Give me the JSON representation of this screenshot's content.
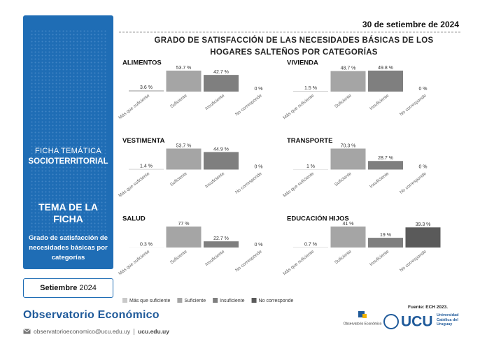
{
  "date": "30 de setiembre de 2024",
  "title": "GRADO DE SATISFACCIÓN DE LAS NECESIDADES BÁSICAS DE LOS HOGARES SALTEÑOS POR CATEGORÍAS",
  "sidebar": {
    "kicker": "FICHA TEMÁTICA",
    "kicker_bold": "SOCIOTERRITORIAL",
    "topic_heading": "TEMA DE LA FICHA",
    "topic": "Grado de satisfacción de necesidades básicas por categorías",
    "month": "Setiembre",
    "year": "2024"
  },
  "chart_data": [
    {
      "type": "bar",
      "title": "ALIMENTOS",
      "categories": [
        "Más que suficiente",
        "Suficiente",
        "Insuficiente",
        "No corresponde"
      ],
      "values": [
        3.6,
        53.7,
        42.7,
        0
      ],
      "value_labels": [
        "3.6 %",
        "53.7 %",
        "42.7 %",
        "0 %"
      ],
      "colors": [
        "#c9c9c9",
        "#a5a5a5",
        "#7f7f7f",
        "#5a5a5a"
      ]
    },
    {
      "type": "bar",
      "title": "VIVIENDA",
      "categories": [
        "Más que suficiente",
        "Suficiente",
        "Insuficiente",
        "No corresponde"
      ],
      "values": [
        1.5,
        48.7,
        49.8,
        0
      ],
      "value_labels": [
        "1.5 %",
        "48.7 %",
        "49.8 %",
        "0 %"
      ],
      "colors": [
        "#c9c9c9",
        "#a5a5a5",
        "#7f7f7f",
        "#5a5a5a"
      ]
    },
    {
      "type": "bar",
      "title": "VESTIMENTA",
      "categories": [
        "Más que suficiente",
        "Suficiente",
        "Insuficiente",
        "No corresponde"
      ],
      "values": [
        1.4,
        53.7,
        44.9,
        0
      ],
      "value_labels": [
        "1.4 %",
        "53.7 %",
        "44.9 %",
        "0 %"
      ],
      "colors": [
        "#c9c9c9",
        "#a5a5a5",
        "#7f7f7f",
        "#5a5a5a"
      ]
    },
    {
      "type": "bar",
      "title": "TRANSPORTE",
      "categories": [
        "Más que suficiente",
        "Suficiente",
        "Insuficiente",
        "No corresponde"
      ],
      "values": [
        1,
        70.3,
        28.7,
        0
      ],
      "value_labels": [
        "1 %",
        "70.3 %",
        "28.7 %",
        "0 %"
      ],
      "colors": [
        "#c9c9c9",
        "#a5a5a5",
        "#7f7f7f",
        "#5a5a5a"
      ]
    },
    {
      "type": "bar",
      "title": "SALUD",
      "categories": [
        "Más que suficiente",
        "Suficiente",
        "Insuficiente",
        "No corresponde"
      ],
      "values": [
        0.3,
        77,
        22.7,
        0
      ],
      "value_labels": [
        "0.3 %",
        "77 %",
        "22.7 %",
        "0 %"
      ],
      "colors": [
        "#c9c9c9",
        "#a5a5a5",
        "#7f7f7f",
        "#5a5a5a"
      ]
    },
    {
      "type": "bar",
      "title": "EDUCACIÓN HIJOS",
      "categories": [
        "Más que suficiente",
        "Suficiente",
        "Insuficiente",
        "No corresponde"
      ],
      "values": [
        0.7,
        41,
        19,
        39.3
      ],
      "value_labels": [
        "0.7 %",
        "41 %",
        "19 %",
        "39.3 %"
      ],
      "colors": [
        "#c9c9c9",
        "#a5a5a5",
        "#7f7f7f",
        "#5a5a5a"
      ]
    }
  ],
  "legend": [
    {
      "name": "Más que suficiente",
      "color": "#c9c9c9"
    },
    {
      "name": "Suficiente",
      "color": "#a5a5a5"
    },
    {
      "name": "Insuficiente",
      "color": "#7f7f7f"
    },
    {
      "name": "No corresponde",
      "color": "#5a5a5a"
    }
  ],
  "source": "Fuente: ECH 2023.",
  "footer": {
    "brand": "Observatorio Económico",
    "email": "observatorioeconomico@ucu.edu.uy",
    "site": "ucu.edu.uy"
  },
  "logos": {
    "observatorio": "Observatorio Económico",
    "ucu": "UCU",
    "ucu_name": "Universidad Católica del Uruguay"
  }
}
